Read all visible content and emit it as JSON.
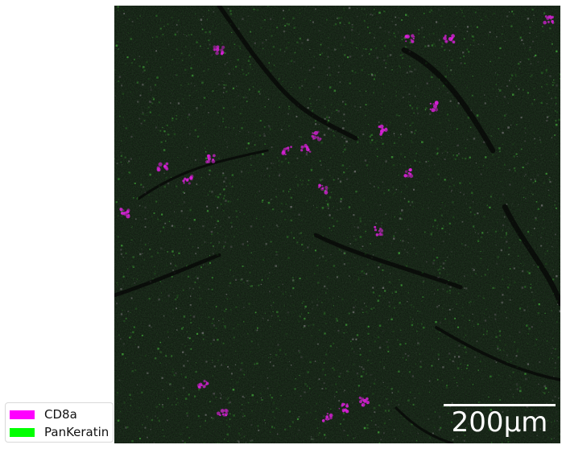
{
  "image": {
    "background_color": "#0b0c0b",
    "texture_colors": [
      "#2f8f2b",
      "#4fcf45",
      "#6a6a6a",
      "#e020e0"
    ]
  },
  "scale_bar": {
    "label": "200μm",
    "color": "#ffffff"
  },
  "legend": {
    "items": [
      {
        "label": "CD8a",
        "color": "#ff00ff"
      },
      {
        "label": "PanKeratin",
        "color": "#00ff00"
      }
    ]
  }
}
